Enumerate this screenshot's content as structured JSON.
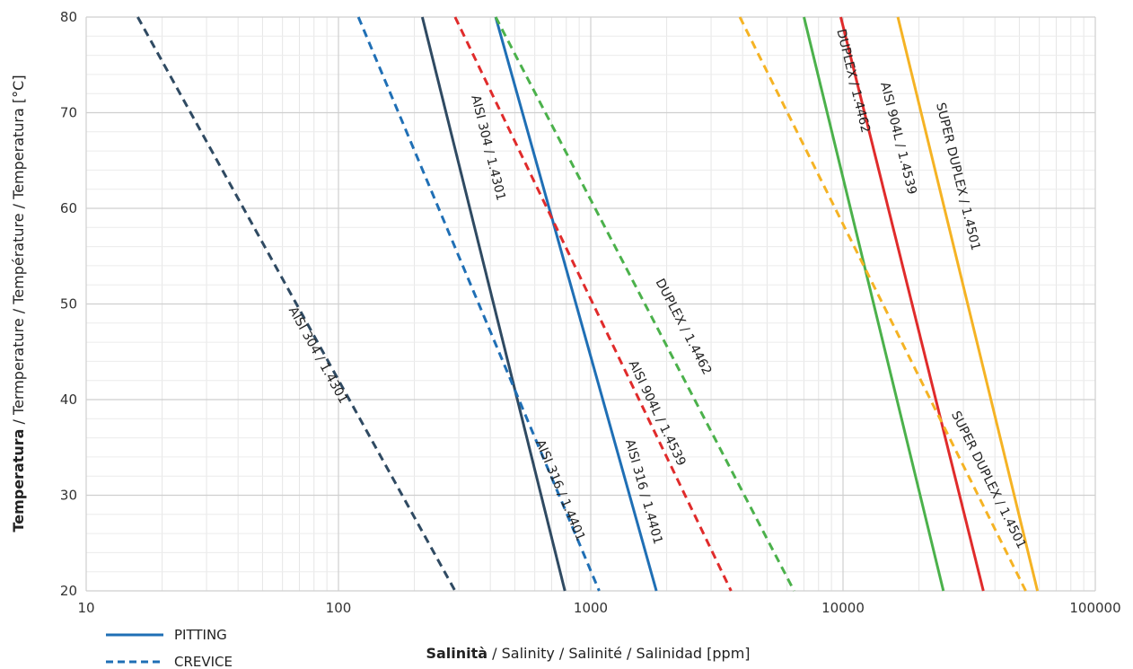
{
  "chart_data": {
    "type": "line",
    "x_scale": "log",
    "xlim": [
      10,
      100000
    ],
    "ylim": [
      20,
      80
    ],
    "x_ticks": [
      "10",
      "100",
      "1000",
      "10000",
      "100000"
    ],
    "y_ticks": [
      "20",
      "30",
      "40",
      "50",
      "60",
      "70",
      "80"
    ],
    "grid": true,
    "xlabel_bold": "Salinità",
    "xlabel_rest": " / Salinity / Salinité / Salinidad [ppm]",
    "ylabel_bold": "Temperatura",
    "ylabel_rest": " / Termperature / Température / Temperatura [°C]",
    "legend": {
      "position": "bottom-left",
      "entries": [
        {
          "label": "PITTING",
          "style": "solid"
        },
        {
          "label": "CREVICE",
          "style": "dashed"
        }
      ]
    },
    "series": [
      {
        "label": "AISI 304 / 1.4301",
        "type": "CREVICE",
        "color": "#2f4a62",
        "dash": true,
        "x": [
          16,
          290
        ],
        "y": [
          80,
          20
        ],
        "label_at": [
          75,
          44
        ]
      },
      {
        "label": "AISI 304 / 1.4301",
        "type": "PITTING",
        "color": "#2f4a62",
        "dash": false,
        "x": [
          215,
          790
        ],
        "y": [
          80,
          20
        ],
        "label_at": [
          350,
          66
        ]
      },
      {
        "label": "AISI 316 / 1.4401",
        "type": "CREVICE",
        "color": "#1f6fb5",
        "dash": true,
        "x": [
          120,
          1080
        ],
        "y": [
          80,
          20
        ],
        "label_at": [
          680,
          30
        ]
      },
      {
        "label": "AISI 316 / 1.4401",
        "type": "PITTING",
        "color": "#1f6fb5",
        "dash": false,
        "x": [
          420,
          1820
        ],
        "y": [
          80,
          20
        ],
        "label_at": [
          1450,
          30
        ]
      },
      {
        "label": "AISI 904L / 1.4539",
        "type": "CREVICE",
        "color": "#e02b2b",
        "dash": true,
        "x": [
          290,
          3600
        ],
        "y": [
          80,
          20
        ],
        "label_at": [
          1650,
          38
        ]
      },
      {
        "label": "DUPLEX / 1.4462",
        "type": "CREVICE",
        "color": "#4bb14b",
        "dash": true,
        "x": [
          420,
          6400
        ],
        "y": [
          80,
          20
        ],
        "label_at": [
          2100,
          47
        ]
      },
      {
        "label": "DUPLEX / 1.4462",
        "type": "PITTING",
        "color": "#4bb14b",
        "dash": false,
        "x": [
          7000,
          25000
        ],
        "y": [
          80,
          20
        ],
        "label_at": [
          9800,
          73
        ]
      },
      {
        "label": "AISI 904L / 1.4539",
        "type": "PITTING",
        "color": "#e02b2b",
        "dash": false,
        "x": [
          9800,
          36000
        ],
        "y": [
          80,
          20
        ],
        "label_at": [
          14800,
          67
        ]
      },
      {
        "label": "SUPER DUPLEX / 1.4501",
        "type": "CREVICE",
        "color": "#f5b324",
        "dash": true,
        "x": [
          3900,
          53000
        ],
        "y": [
          80,
          20
        ],
        "label_at": [
          34000,
          31
        ]
      },
      {
        "label": "SUPER DUPLEX / 1.4501",
        "type": "PITTING",
        "color": "#f5b324",
        "dash": false,
        "x": [
          16500,
          59000
        ],
        "y": [
          80,
          20
        ],
        "label_at": [
          25500,
          63
        ]
      }
    ]
  }
}
